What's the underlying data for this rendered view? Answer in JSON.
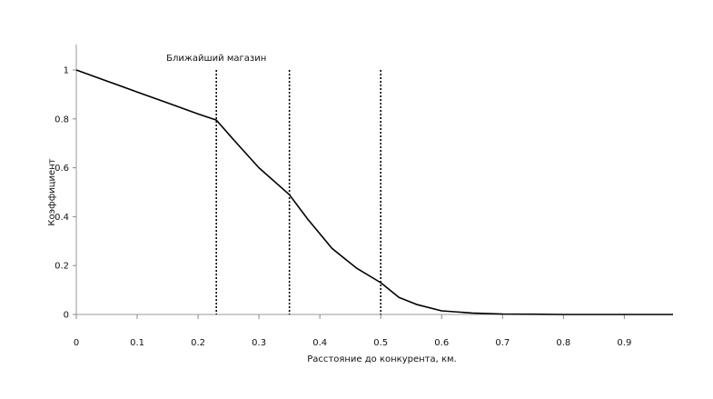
{
  "chart_data": {
    "type": "line",
    "title": "",
    "xlabel": "Расстояние до конкурента, км.",
    "ylabel": "Коэффициент",
    "xlim": [
      0,
      0.98
    ],
    "ylim": [
      0,
      1
    ],
    "x_ticks": [
      "0",
      "0.1",
      "0.2",
      "0.3",
      "0.4",
      "0.5",
      "0.6",
      "0.7",
      "0.8",
      "0.9"
    ],
    "x_tick_values": [
      0,
      0.1,
      0.2,
      0.3,
      0.4,
      0.5,
      0.6,
      0.7,
      0.8,
      0.9
    ],
    "y_ticks": [
      "0",
      "0.2",
      "0.4",
      "0.6",
      "0.8",
      "1"
    ],
    "y_tick_values": [
      0,
      0.2,
      0.4,
      0.6,
      0.8,
      1
    ],
    "grid": false,
    "series": [
      {
        "x": [
          0,
          0.05,
          0.1,
          0.15,
          0.2,
          0.23,
          0.26,
          0.3,
          0.35,
          0.38,
          0.42,
          0.46,
          0.5,
          0.53,
          0.56,
          0.6,
          0.65,
          0.7,
          0.75,
          0.8,
          0.9,
          0.98
        ],
        "y": [
          1.0,
          0.955,
          0.91,
          0.865,
          0.82,
          0.795,
          0.71,
          0.6,
          0.49,
          0.39,
          0.27,
          0.19,
          0.13,
          0.07,
          0.04,
          0.015,
          0.006,
          0.002,
          0.001,
          0.0,
          0.0,
          0.0
        ]
      }
    ],
    "vertical_lines": [
      {
        "x": 0.23,
        "label": "Ближайший магазин"
      },
      {
        "x": 0.35,
        "label": ""
      },
      {
        "x": 0.5,
        "label": ""
      }
    ]
  }
}
